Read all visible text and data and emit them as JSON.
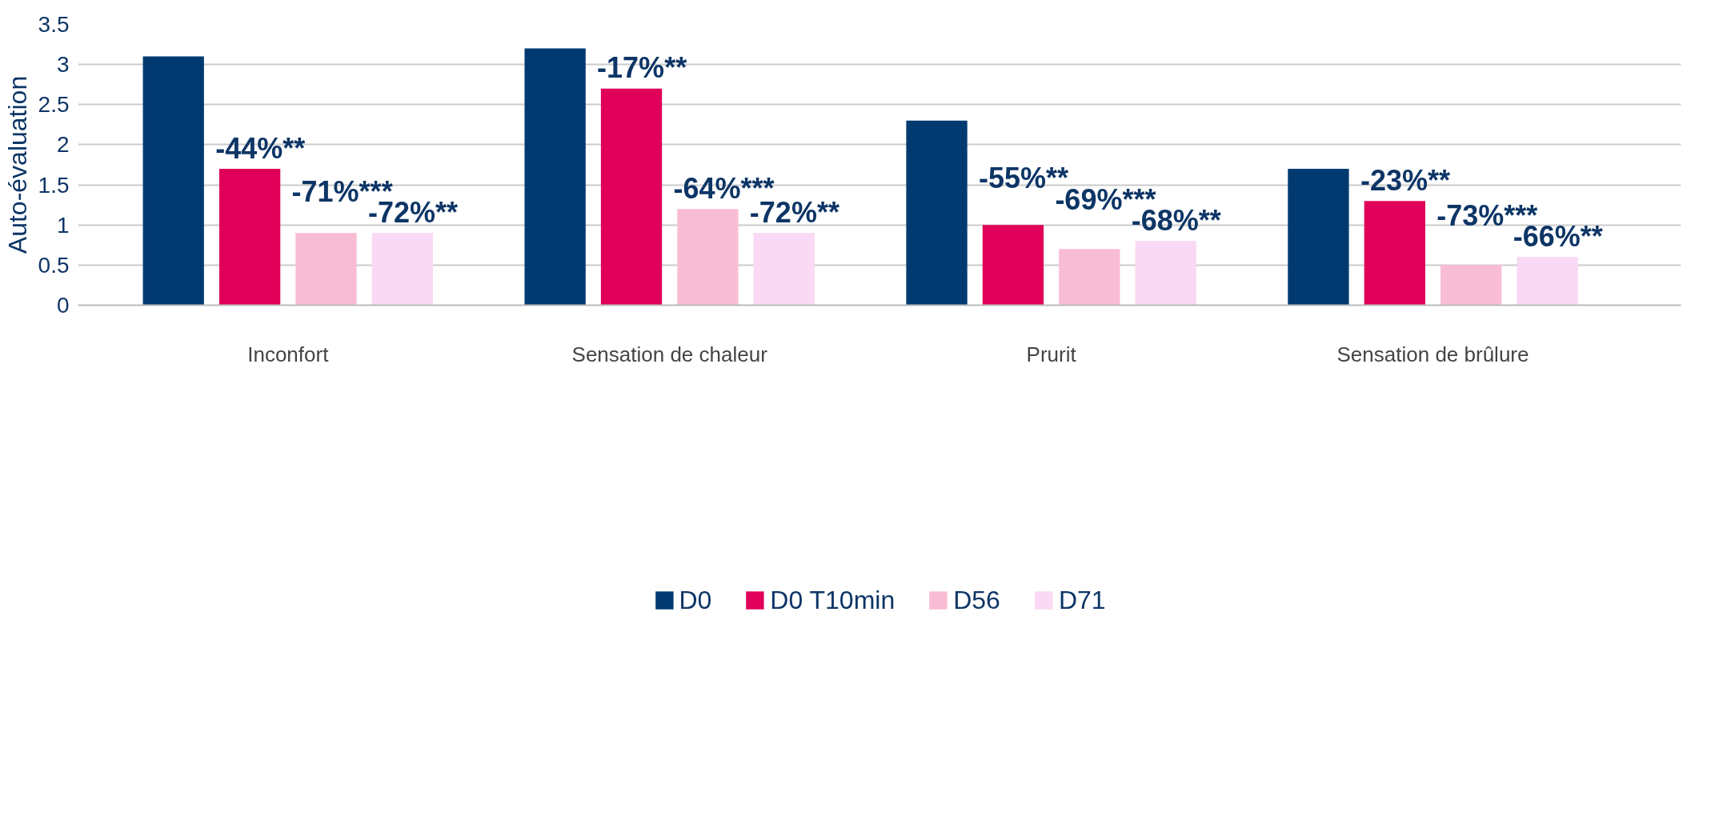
{
  "chart_data": {
    "type": "bar",
    "ylabel": "Auto-évaluation",
    "categories": [
      "Inconfort",
      "Sensation de chaleur",
      "Prurit",
      "Sensation de brûlure"
    ],
    "series": [
      {
        "name": "D0",
        "color": "#003a70",
        "values": [
          3.1,
          3.2,
          2.3,
          1.7
        ]
      },
      {
        "name": "D0 T10min",
        "color": "#e0005a",
        "values": [
          1.7,
          2.7,
          1.0,
          1.3
        ]
      },
      {
        "name": "D56",
        "color": "#f9bcd5",
        "values": [
          0.9,
          1.2,
          0.7,
          0.5
        ]
      },
      {
        "name": "D71",
        "color": "#f9d9f3",
        "values": [
          0.9,
          0.9,
          0.8,
          0.6
        ]
      }
    ],
    "annotations": [
      "-44%**",
      "-71%***",
      "-72%**",
      "-17%**",
      "-64%***",
      "-72%**",
      "-55%**",
      "-69%***",
      "-68%**",
      "-23%**",
      "-73%***",
      "-66%**"
    ],
    "ylim": [
      0,
      3.5
    ],
    "yticks": [
      0,
      0.5,
      1,
      1.5,
      2,
      2.5,
      3,
      3.5
    ],
    "grid": "y",
    "legend": "bottom"
  }
}
